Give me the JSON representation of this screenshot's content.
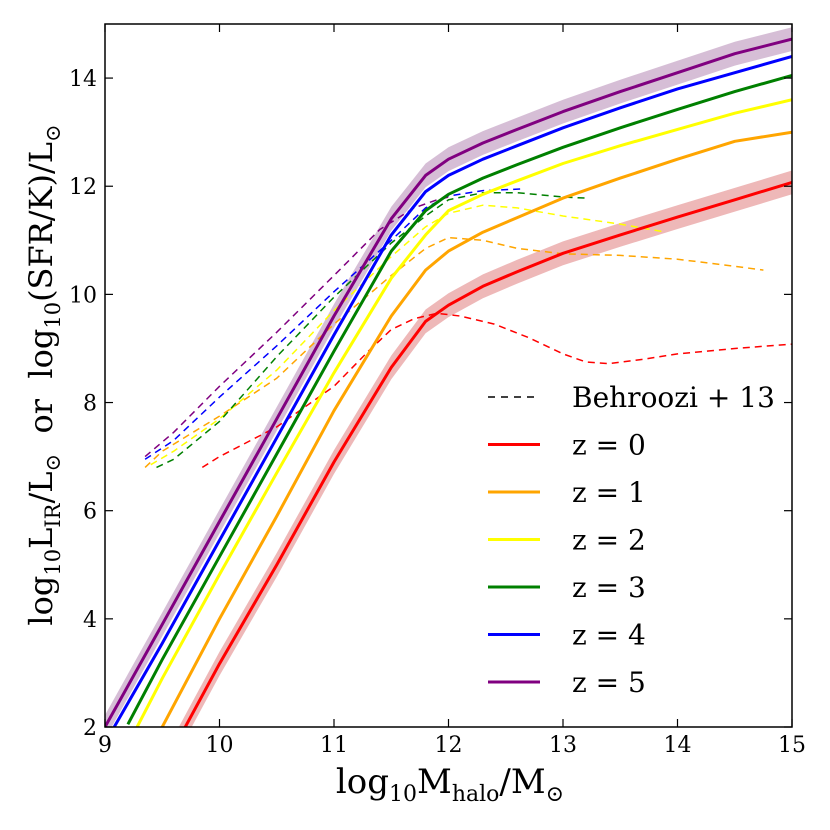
{
  "chart_data": {
    "type": "line",
    "title": "",
    "xlabel": {
      "base": "log",
      "sub1": "10",
      "main": "M",
      "sub2": "halo",
      "mid": "/M",
      "sun": "⊙"
    },
    "ylabel": {
      "p1": "log",
      "s1": "10",
      "p2": "L",
      "s2": "IR",
      "p3": "/L",
      "sun1": "⊙",
      "p4": "  or  log",
      "s3": "10",
      "p5": "(SFR/K)/L",
      "sun2": "⊙"
    },
    "xlim": [
      9,
      15
    ],
    "ylim": [
      2,
      15
    ],
    "xticks": [
      "9",
      "10",
      "11",
      "12",
      "13",
      "14",
      "15"
    ],
    "yticks": [
      "2",
      "4",
      "6",
      "8",
      "10",
      "12",
      "14"
    ],
    "legend_position": "lower-right",
    "legend": [
      {
        "label": "Behroozi + 13",
        "style": "dashed",
        "color": "#000000"
      },
      {
        "label": "z = 0",
        "style": "solid",
        "color": "#ff0000"
      },
      {
        "label": "z = 1",
        "style": "solid",
        "color": "#ffa500"
      },
      {
        "label": "z = 2",
        "style": "solid",
        "color": "#ffff00"
      },
      {
        "label": "z = 3",
        "style": "solid",
        "color": "#008000"
      },
      {
        "label": "z = 4",
        "style": "solid",
        "color": "#0000ff"
      },
      {
        "label": "z = 5",
        "style": "solid",
        "color": "#800080"
      }
    ],
    "model_series": [
      {
        "name": "z = 0",
        "color": "#ff0000",
        "band": "#e8a0a0",
        "x": [
          9.65,
          10.0,
          10.5,
          11.0,
          11.5,
          11.8,
          12.0,
          12.3,
          12.6,
          13.0,
          13.5,
          14.0,
          14.5,
          15.0
        ],
        "y": [
          1.8,
          3.17,
          5.0,
          6.9,
          8.65,
          9.5,
          9.8,
          10.15,
          10.42,
          10.76,
          11.1,
          11.43,
          11.75,
          12.07
        ]
      },
      {
        "name": "z = 1",
        "color": "#ffa500",
        "band": null,
        "x": [
          9.45,
          10.0,
          10.5,
          11.0,
          11.5,
          11.8,
          12.0,
          12.3,
          12.6,
          13.0,
          13.5,
          14.0,
          14.5,
          15.0
        ],
        "y": [
          1.8,
          4.0,
          5.9,
          7.85,
          9.6,
          10.45,
          10.8,
          11.15,
          11.42,
          11.78,
          12.15,
          12.5,
          12.83,
          13.0
        ]
      },
      {
        "name": "z = 2",
        "color": "#ffff00",
        "band": null,
        "x": [
          9.28,
          9.5,
          10.0,
          10.5,
          11.0,
          11.5,
          11.8,
          12.0,
          12.3,
          12.6,
          13.0,
          13.5,
          14.0,
          14.5,
          15.0
        ],
        "y": [
          2.0,
          2.9,
          4.82,
          6.7,
          8.55,
          10.3,
          11.1,
          11.55,
          11.85,
          12.1,
          12.42,
          12.75,
          13.05,
          13.35,
          13.6
        ]
      },
      {
        "name": "z = 3",
        "color": "#008000",
        "band": null,
        "x": [
          9.2,
          9.5,
          10.0,
          10.5,
          11.0,
          11.5,
          11.8,
          12.0,
          12.3,
          12.6,
          13.0,
          13.5,
          14.0,
          14.5,
          15.0
        ],
        "y": [
          2.05,
          3.25,
          5.15,
          7.05,
          8.95,
          10.8,
          11.55,
          11.85,
          12.15,
          12.4,
          12.72,
          13.08,
          13.42,
          13.75,
          14.05
        ]
      },
      {
        "name": "z = 4",
        "color": "#0000ff",
        "band": null,
        "x": [
          9.08,
          9.5,
          10.0,
          10.5,
          11.0,
          11.5,
          11.8,
          12.0,
          12.3,
          12.6,
          13.0,
          13.5,
          14.0,
          14.5,
          15.0
        ],
        "y": [
          2.0,
          3.55,
          5.45,
          7.35,
          9.25,
          11.1,
          11.9,
          12.2,
          12.5,
          12.75,
          13.08,
          13.45,
          13.8,
          14.1,
          14.4
        ]
      },
      {
        "name": "z = 5",
        "color": "#800080",
        "band": "#c8a8c8",
        "x": [
          9.0,
          9.5,
          10.0,
          10.5,
          11.0,
          11.5,
          11.8,
          12.0,
          12.3,
          12.6,
          13.0,
          13.5,
          14.0,
          14.5,
          15.0
        ],
        "y": [
          2.0,
          3.9,
          5.8,
          7.7,
          9.6,
          11.4,
          12.2,
          12.5,
          12.8,
          13.05,
          13.38,
          13.75,
          14.1,
          14.45,
          14.72
        ]
      }
    ],
    "behroozi_series": [
      {
        "name": "z = 0",
        "color": "#ff0000",
        "x": [
          9.85,
          10.0,
          10.5,
          11.0,
          11.3,
          11.5,
          11.7,
          11.9,
          12.1,
          12.4,
          12.7,
          13.0,
          13.2,
          13.4,
          13.7,
          14.0,
          14.5,
          15.0
        ],
        "y": [
          6.8,
          7.0,
          7.55,
          8.3,
          8.95,
          9.35,
          9.55,
          9.65,
          9.6,
          9.45,
          9.2,
          8.9,
          8.75,
          8.72,
          8.8,
          8.9,
          9.0,
          9.08
        ]
      },
      {
        "name": "z = 1",
        "color": "#ffa500",
        "x": [
          9.35,
          9.5,
          10.0,
          10.5,
          11.0,
          11.5,
          11.8,
          12.0,
          12.3,
          12.6,
          13.0,
          13.5,
          14.0,
          14.5,
          14.75
        ],
        "y": [
          6.8,
          7.1,
          7.75,
          8.45,
          9.45,
          10.35,
          10.85,
          11.05,
          11.0,
          10.85,
          10.75,
          10.72,
          10.65,
          10.52,
          10.45
        ]
      },
      {
        "name": "z = 2",
        "color": "#ffff00",
        "x": [
          9.4,
          9.6,
          10.0,
          10.5,
          11.0,
          11.5,
          11.8,
          12.0,
          12.3,
          12.6,
          13.0,
          13.5,
          13.9
        ],
        "y": [
          6.85,
          7.1,
          7.7,
          8.6,
          9.7,
          10.7,
          11.25,
          11.5,
          11.65,
          11.6,
          11.45,
          11.3,
          11.15
        ]
      },
      {
        "name": "z = 3",
        "color": "#008000",
        "x": [
          9.45,
          9.6,
          10.0,
          10.5,
          11.0,
          11.5,
          11.8,
          12.0,
          12.3,
          12.6,
          13.0,
          13.2
        ],
        "y": [
          6.8,
          6.95,
          7.65,
          8.85,
          9.95,
          10.95,
          11.45,
          11.75,
          11.88,
          11.88,
          11.8,
          11.78
        ]
      },
      {
        "name": "z = 4",
        "color": "#0000ff",
        "x": [
          9.35,
          9.6,
          10.0,
          10.5,
          11.0,
          11.5,
          11.8,
          12.0,
          12.3,
          12.65
        ],
        "y": [
          6.95,
          7.3,
          8.1,
          9.05,
          10.05,
          11.0,
          11.6,
          11.82,
          11.92,
          11.95
        ]
      },
      {
        "name": "z = 5",
        "color": "#800080",
        "x": [
          9.35,
          9.6,
          10.0,
          10.5,
          11.0,
          11.4,
          11.7,
          11.9,
          12.0
        ],
        "y": [
          7.0,
          7.45,
          8.3,
          9.3,
          10.35,
          11.2,
          11.6,
          11.75,
          11.8
        ]
      }
    ]
  }
}
